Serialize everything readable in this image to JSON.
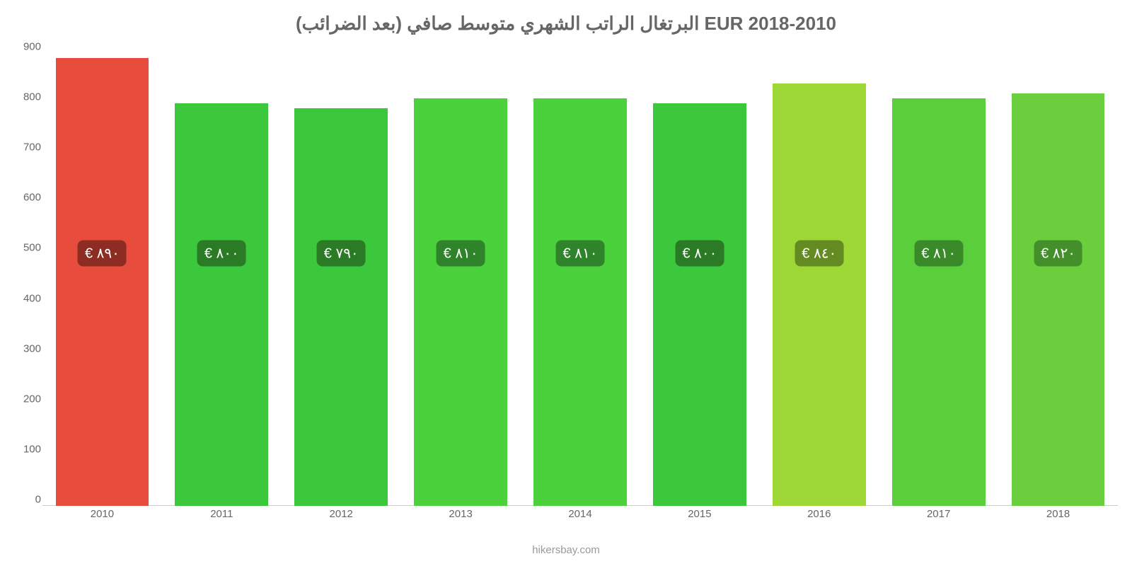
{
  "chart": {
    "type": "bar",
    "title": "البرتغال الراتب الشهري متوسط صافي (بعد الضرائب) EUR 2018-2010",
    "title_fontsize": 26,
    "title_color": "#666666",
    "background_color": "#ffffff",
    "ylim": [
      0,
      900
    ],
    "ytick_step": 100,
    "y_ticks": [
      "0",
      "100",
      "200",
      "300",
      "400",
      "500",
      "600",
      "700",
      "800",
      "900"
    ],
    "categories": [
      "2010",
      "2011",
      "2012",
      "2013",
      "2014",
      "2015",
      "2016",
      "2017",
      "2018"
    ],
    "values": [
      890,
      800,
      790,
      810,
      810,
      800,
      840,
      810,
      820
    ],
    "value_labels": [
      "٨٩٠ €",
      "٨٠٠ €",
      "٧٩٠ €",
      "٨١٠ €",
      "٨١٠ €",
      "٨٠٠ €",
      "٨٤٠ €",
      "٨١٠ €",
      "٨٢٠ €"
    ],
    "bar_colors": [
      "#e74c3c",
      "#3cc83c",
      "#3cc83c",
      "#4bd13c",
      "#4bd13c",
      "#3cc83c",
      "#9ed836",
      "#5bce3c",
      "#6bce3c"
    ],
    "label_bg_colors": [
      "#8d2c22",
      "#2a7a26",
      "#2a7a26",
      "#2f832a",
      "#2f832a",
      "#2a7a26",
      "#648b22",
      "#3a8a2a",
      "#43902a"
    ],
    "bar_width_ratio": 0.78,
    "axis_label_color": "#666666",
    "axis_label_fontsize": 15,
    "baseline_color": "#cccccc",
    "attribution": "hikersbay.com",
    "attribution_color": "#999999",
    "label_y_value": 470
  }
}
